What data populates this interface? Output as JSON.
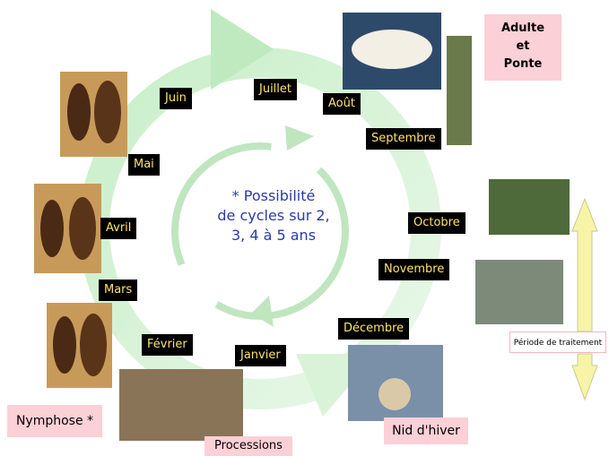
{
  "months": [
    "Juin",
    "Juillet",
    "Août",
    "Septembre",
    "Octobre",
    "Novembre",
    "Décembre",
    "Janvier",
    "Février",
    "Mars",
    "Avril",
    "Mai"
  ],
  "center_note": [
    "* Possibilité",
    "de cycles sur 2,",
    "3, 4 à 5 ans"
  ],
  "stages": {
    "adult": [
      "Adulte",
      "et",
      "Ponte"
    ],
    "nymphose": "Nymphose *",
    "processions": "Processions",
    "nest": "Nid d'hiver",
    "treatment": "Période de traitement"
  }
}
